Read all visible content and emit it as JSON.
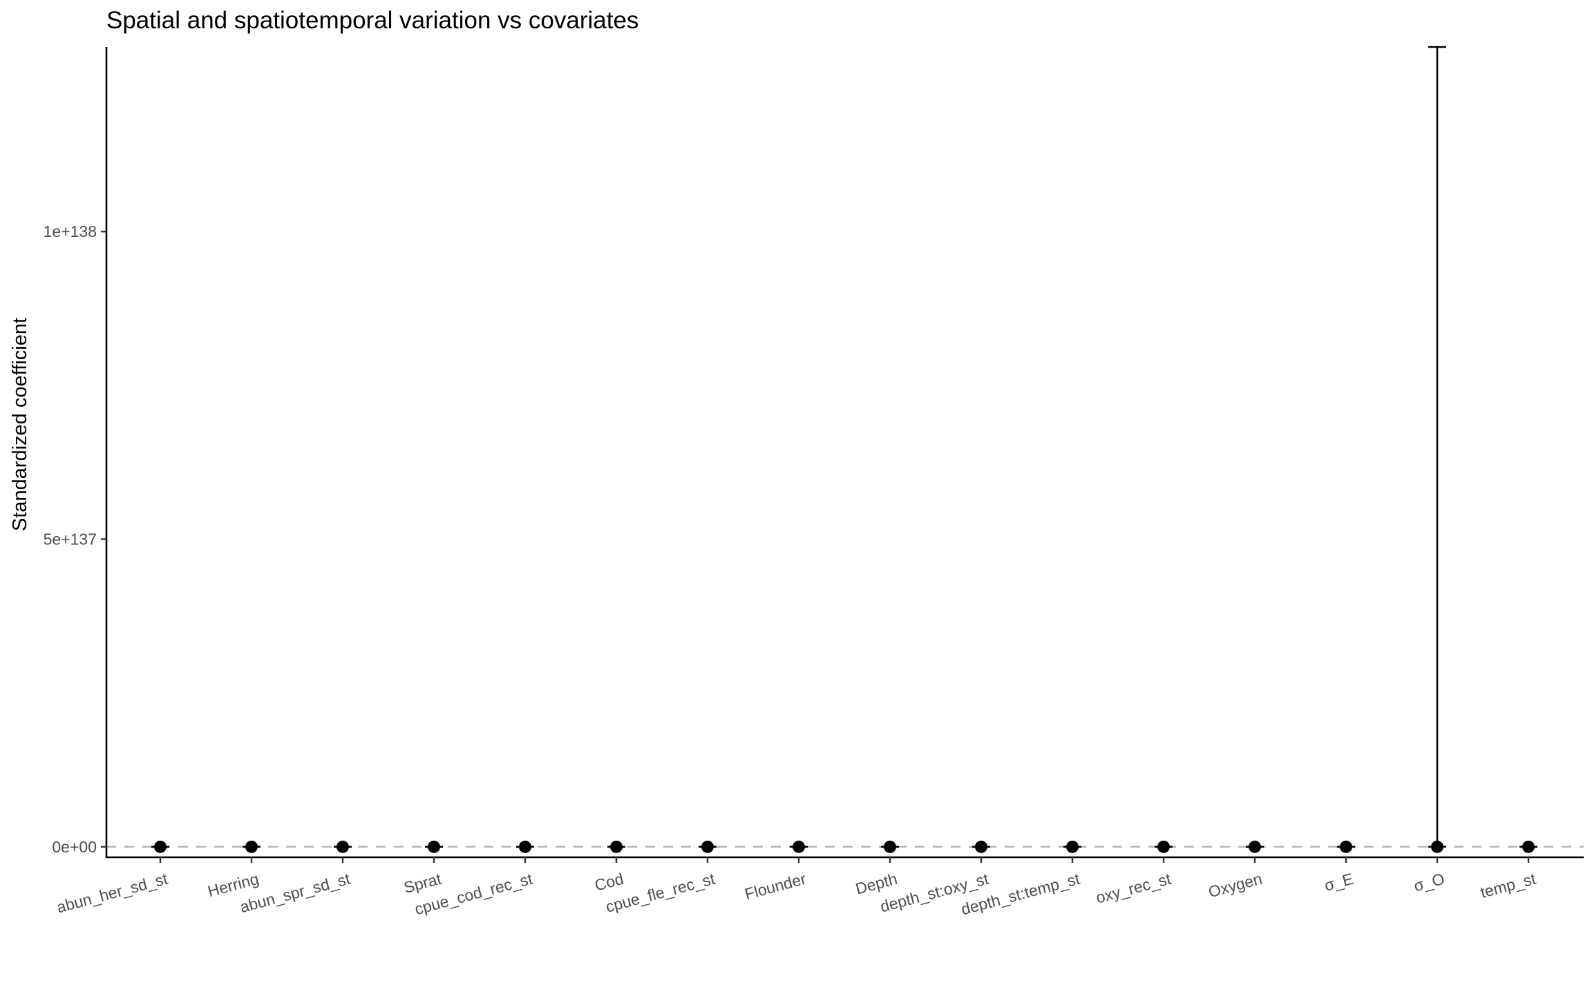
{
  "chart_data": {
    "type": "scatter",
    "title": "Spatial and spatiotemporal variation vs covariates",
    "xlabel": "",
    "ylabel": "Standardized coefficient",
    "categories": [
      "abun_her_sd_st",
      "Herring",
      "abun_spr_sd_st",
      "Sprat",
      "cpue_cod_rec_st",
      "Cod",
      "cpue_fle_rec_st",
      "Flounder",
      "Depth",
      "depth_st:oxy_st",
      "depth_st:temp_st",
      "oxy_rec_st",
      "Oxygen",
      "σ_E",
      "σ_O",
      "temp_st"
    ],
    "yticks": [
      {
        "value": 0,
        "label": "0e+00"
      },
      {
        "value": 5e+137,
        "label": "5e+137"
      },
      {
        "value": 1e+138,
        "label": "1e+138"
      }
    ],
    "ylim": [
      -1.7e+136,
      1.3e+138
    ],
    "series": [
      {
        "values": [
          0,
          0,
          0,
          0,
          0,
          0,
          0,
          0,
          0,
          0,
          0,
          0,
          0,
          0,
          0,
          0
        ],
        "lower": [
          0,
          0,
          0,
          0,
          0,
          0,
          0,
          0,
          0,
          0,
          0,
          0,
          0,
          0,
          0,
          0
        ],
        "upper": [
          0,
          0,
          0,
          0,
          0,
          0,
          0,
          0,
          0,
          0,
          0,
          0,
          0,
          0,
          1.3e+138,
          0
        ]
      }
    ],
    "reference_line": {
      "value": 0,
      "style": "dashed",
      "color": "#b3b3b3"
    },
    "point_color": "#000000",
    "axis_color": "#000000",
    "grid": false,
    "legend": "none"
  }
}
